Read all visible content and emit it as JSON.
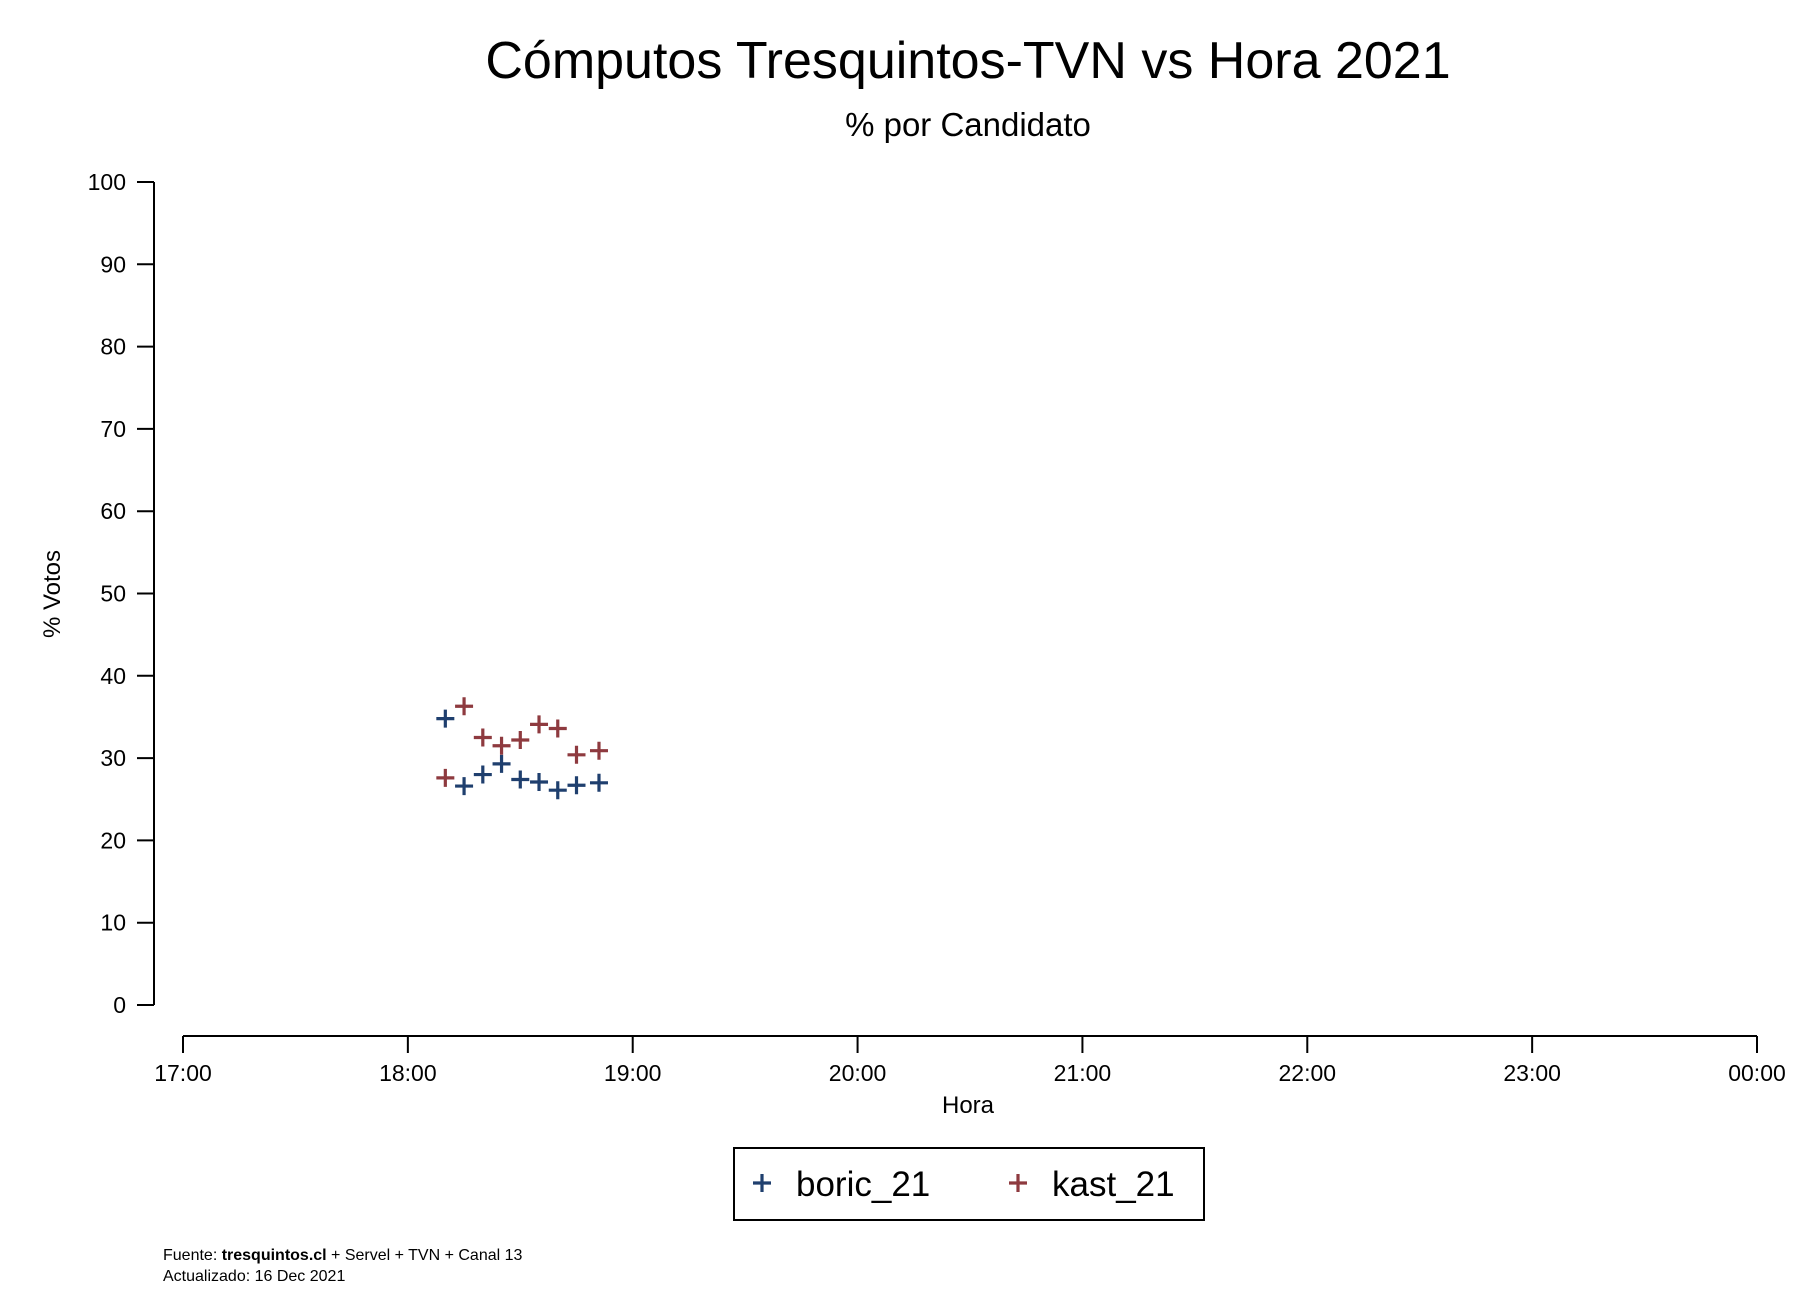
{
  "chart_data": {
    "type": "scatter",
    "title": "Cómputos Tresquintos-TVN vs Hora 2021",
    "subtitle": "% por Candidato",
    "xlabel": "Hora",
    "ylabel": "% Votos",
    "x_ticks": [
      "17:00",
      "18:00",
      "19:00",
      "20:00",
      "21:00",
      "22:00",
      "23:00",
      "00:00"
    ],
    "y_ticks": [
      0,
      10,
      20,
      30,
      40,
      50,
      60,
      70,
      80,
      90,
      100
    ],
    "xlim_hours": [
      17,
      24
    ],
    "ylim": [
      0,
      100
    ],
    "grid": false,
    "legend_position": "bottom",
    "marker": "+",
    "series": [
      {
        "name": "boric_21",
        "color": "#1f3f6e",
        "points": [
          {
            "x": "18:10",
            "y": 34.8
          },
          {
            "x": "18:15",
            "y": 26.6
          },
          {
            "x": "18:20",
            "y": 28.0
          },
          {
            "x": "18:25",
            "y": 29.3
          },
          {
            "x": "18:30",
            "y": 27.4
          },
          {
            "x": "18:35",
            "y": 27.1
          },
          {
            "x": "18:40",
            "y": 26.1
          },
          {
            "x": "18:45",
            "y": 26.7
          },
          {
            "x": "18:51",
            "y": 27.0
          }
        ]
      },
      {
        "name": "kast_21",
        "color": "#8e3a3f",
        "points": [
          {
            "x": "18:10",
            "y": 27.6
          },
          {
            "x": "18:15",
            "y": 36.3
          },
          {
            "x": "18:20",
            "y": 32.5
          },
          {
            "x": "18:25",
            "y": 31.5
          },
          {
            "x": "18:30",
            "y": 32.2
          },
          {
            "x": "18:35",
            "y": 34.1
          },
          {
            "x": "18:40",
            "y": 33.6
          },
          {
            "x": "18:45",
            "y": 30.4
          },
          {
            "x": "18:51",
            "y": 30.9
          }
        ]
      }
    ]
  },
  "footnote": {
    "source_prefix": "Fuente: ",
    "source_bold": "tresquintos.cl",
    "source_rest": " + Servel + TVN + Canal 13",
    "updated": "Actualizado: 16 Dec 2021"
  }
}
